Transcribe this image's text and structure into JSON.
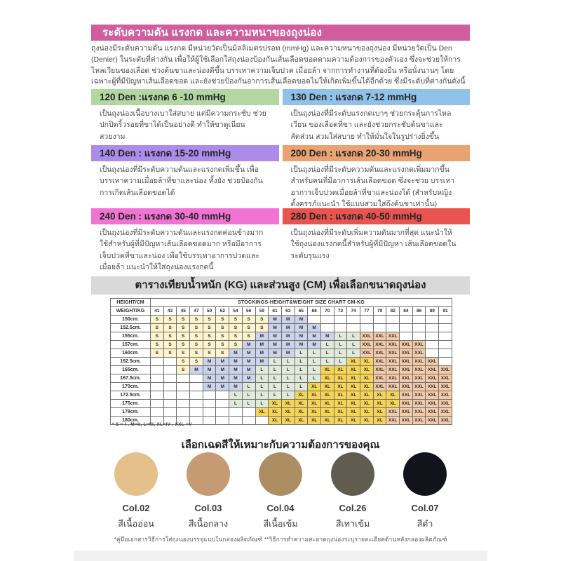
{
  "header": {
    "title": "ระดับความดัน แรงกด และความหนาของถุงน่อง",
    "bg_color": "#d15c9e"
  },
  "intro_text": "ถุงน่องมีระดับความดัน แรงกด มีหน่วยวัดเป็นมิลลิเมตรปรอท (mmHg) และความหนาของถุงน่อง มีหน่วยวัดเป็น Den (Denier) ในระดับที่ต่างกัน เพื่อให้ผู้ใช้เลือกใส่ถุงน่องป้องกันเส้นเลือดขอดตามความต้องการของตัวเอง ซึ่งจะช่วยให้การไหลเวียนของเลือด ช่วงต้นขาและน่องดีขึ้น บรรเทาความเจ็บปวด เมื่อยล้า จากการทำงานที่ต้องยืน หรือนั่งนานๆ โดยเฉพาะผู้ที่มีปัญหาเส้นเลือดขอด และยังช่วยป้องกันอาการเส้นเลือดขอดไม่ให้เกิดเพิ่มขึ้นได้อีกด้วย ซึ่งมีระดับที่ต่างกันดังนี้",
  "den_cards": [
    {
      "title": "120 Den :แรงกด 6 -10 mmHg",
      "color": "#b2d7a0",
      "body": "เป็นถุงน่องเนื้อบางเบาใส่สบาย แต่มีความกระชับ ช่วยปกปิดริ้วรอยที่ขาได้เป็นอย่างดี ทำให้ขาดูเนียนสวยงาม"
    },
    {
      "title": "130 Den : แรงกด 7-12 mmHg",
      "color": "#8fc1e9",
      "body": "เป็นถุงน่องที่มีระดับแรงกดเบาๆ ช่วยกระตุ้นการไหลเวียน ของเลือดที่ขา และยังช่วยกระชับต้นขาและสัดส่วน สวมใส่สบาย ทำให้มั่นใจในรูปร่างยิ่งขึ้น"
    },
    {
      "title": "140 Den : แรงกด 15-20 mmHg",
      "color": "#ab8cea",
      "body": "เป็นถุงน่องที่มีระดับความดันและแรงกดเพิ่มขึ้น เพื่อบรรเทาความเมื่อยล้าที่ขาและน่อง ทั้งยัง ช่วยป้องกันการเกิดเส้นเลือดขอดได้"
    },
    {
      "title": "200 Den : แรงกด 20-30 mmHg",
      "color": "#eaa273",
      "body": "เป็นถุงน่องที่มีระดับความดันและแรงกดเพิ่มมากขึ้น สำหรับคนที่มีอาการเส้นเลือดขอด ซึ่งจะช่วย บรรเทาอาการเจ็บปวดเมื่อยล้าที่ขาและน่องได้ (สำหรับหญิงตั้งครรภ์แนะนำ ใช้แบบสวมใส่ถึงต้นขาเท่านั้น)"
    },
    {
      "title": "240 Den : แรงกด 30-40 mmHg",
      "color": "#ef74d3",
      "body": "เป็นถุงน่องที่มีระดับความดันและแรงกดค่อนข้างมาก ใช้สำหรับผู้ที่มีปัญหาเส้นเลือดขอดมาก หรือมีอาการ เจ็บปวดที่ขาและน่อง เพื่อใช้บรรเทาอาการปวดและ เมื่อยล้า แนะนำให้ใส่ถุงน่องแรงกดนี้"
    },
    {
      "title": "280 Den : แรงกด 40-50 mmHg",
      "color": "#e85450",
      "body": "เป็นถุงน่องที่มีระดับเพิ่มความดันมากที่สุด แนะนำให้ใช้ถุงน่องแรงกดนี้สำหรับผู้ที่มีปัญหา เส้นเลือดขอดในระดับรุนแรง"
    }
  ],
  "size_section": {
    "title": "ตารางเทียบน้ำหนัก (KG) และส่วนสูง (CM) เพื่อเลือกขนาดถุงน่อง"
  },
  "size_chart": {
    "corner_height": "HEIGHT/CM",
    "corner_weight": "WEIGHT/KG",
    "span_title": "STOCKINGS-HEIGHT&WEIGHT SIZE CHART CM-KG",
    "weights": [
      41,
      43,
      45,
      47,
      50,
      52,
      54,
      56,
      59,
      61,
      63,
      65,
      68,
      70,
      72,
      74,
      77,
      79,
      82,
      84,
      86,
      89,
      91
    ],
    "rows": [
      {
        "height": "150cm.",
        "cells": [
          "S",
          "S",
          "S",
          "S",
          "S",
          "S",
          "S",
          "S",
          "S",
          "M",
          "M",
          "M",
          "",
          "",
          "",
          "",
          "",
          "",
          "",
          "",
          "",
          "",
          ""
        ]
      },
      {
        "height": "152.5cm.",
        "cells": [
          "S",
          "S",
          "S",
          "S",
          "S",
          "S",
          "S",
          "S",
          "S",
          "M",
          "M",
          "M",
          "M",
          "",
          "",
          "",
          "",
          "",
          "",
          "",
          "",
          "",
          ""
        ]
      },
      {
        "height": "155cm.",
        "cells": [
          "S",
          "S",
          "S",
          "S",
          "S",
          "S",
          "S",
          "S",
          "M",
          "M",
          "M",
          "M",
          "M",
          "M",
          "L",
          "L",
          "XXL",
          "XXL",
          "XXL",
          "",
          "",
          "",
          ""
        ]
      },
      {
        "height": "157cm.",
        "cells": [
          "S",
          "S",
          "S",
          "S",
          "S",
          "S",
          "S",
          "M",
          "M",
          "M",
          "M",
          "M",
          "M",
          "L",
          "L",
          "L",
          "XXL",
          "XXL",
          "XXL",
          "XXL",
          "XXL",
          "",
          ""
        ]
      },
      {
        "height": "160cm.",
        "cells": [
          "S",
          "S",
          "S",
          "S",
          "S",
          "S",
          "M",
          "M",
          "M",
          "M",
          "M",
          "L",
          "L",
          "L",
          "L",
          "L",
          "XXL",
          "XXL",
          "XXL",
          "XXL",
          "XXL",
          "",
          ""
        ]
      },
      {
        "height": "162.5cm.",
        "cells": [
          "",
          "",
          "S",
          "S",
          "M",
          "M",
          "M",
          "M",
          "M",
          "L",
          "L",
          "L",
          "L",
          "L",
          "L",
          "XL",
          "XL",
          "XXL",
          "XXL",
          "XXL",
          "XXL",
          "XXL",
          ""
        ]
      },
      {
        "height": "165cm.",
        "cells": [
          "",
          "",
          "S",
          "M",
          "M",
          "M",
          "M",
          "M",
          "L",
          "L",
          "L",
          "L",
          "L",
          "XL",
          "XL",
          "XL",
          "XL",
          "XXL",
          "XXL",
          "XXL",
          "XXL",
          "XXL",
          "XXL"
        ]
      },
      {
        "height": "167.5cm.",
        "cells": [
          "",
          "",
          "",
          "",
          "M",
          "M",
          "M",
          "M",
          "L",
          "L",
          "L",
          "L",
          "L",
          "XL",
          "XL",
          "XL",
          "XL",
          "XXL",
          "XXL",
          "XXL",
          "XXL",
          "XXL",
          "XXL"
        ]
      },
      {
        "height": "170cm.",
        "cells": [
          "",
          "",
          "",
          "",
          "M",
          "M",
          "M",
          "L",
          "L",
          "L",
          "L",
          "L",
          "XL",
          "XL",
          "XL",
          "XL",
          "XL",
          "XXL",
          "XXL",
          "XXL",
          "XXL",
          "XXL",
          "XXL"
        ]
      },
      {
        "height": "172.5cm.",
        "cells": [
          "",
          "",
          "",
          "",
          "",
          "",
          "L",
          "L",
          "L",
          "L",
          "L",
          "XL",
          "XL",
          "XL",
          "XL",
          "XL",
          "XL",
          "XL",
          "XL",
          "XXL",
          "XXL",
          "XXL",
          "XXL"
        ]
      },
      {
        "height": "175cm.",
        "cells": [
          "",
          "",
          "",
          "",
          "",
          "",
          "L",
          "L",
          "L",
          "XL",
          "XL",
          "XL",
          "XL",
          "XL",
          "XL",
          "XL",
          "XL",
          "XL",
          "XL",
          "XXL",
          "XXL",
          "XXL",
          "XXL"
        ]
      },
      {
        "height": "178cm.",
        "cells": [
          "",
          "",
          "",
          "",
          "",
          "",
          "",
          "",
          "XL",
          "XL",
          "XL",
          "XL",
          "XL",
          "XL",
          "XL",
          "XL",
          "XL",
          "XL",
          "XXL",
          "XXL",
          "XXL",
          "XXL",
          "XXL"
        ]
      },
      {
        "height": "180cm.",
        "cells": [
          "",
          "",
          "",
          "",
          "",
          "",
          "",
          "",
          "",
          "XL",
          "XL",
          "XL",
          "XL",
          "XL",
          "XL",
          "XL",
          "XL",
          "XL",
          "XXL",
          "XXL",
          "XXL",
          "XXL",
          "XXL"
        ]
      }
    ],
    "legend": "* S = I ,  M=II,  L=III,  XL=IV ,  XXL =V",
    "cell_colors": {
      "S": "#fdf3cd",
      "M": "#ccd4ec",
      "L": "#dfeada",
      "XL": "#f6d455",
      "XXL": "#f3cba9"
    }
  },
  "shades": {
    "title": "เลือกเฉดสีให้เหมาะกับความต้องการของคุณ",
    "items": [
      {
        "code": "Col.02",
        "name": "สีเนื้ออ่อน",
        "hex": "#e6c08b"
      },
      {
        "code": "Col.03",
        "name": "สีเนื้อกลาง",
        "hex": "#c69a73"
      },
      {
        "code": "Col.04",
        "name": "สีเนื้อเข้ม",
        "hex": "#ac8e62"
      },
      {
        "code": "Col.26",
        "name": "สีเทาเข้ม",
        "hex": "#625c50"
      },
      {
        "code": "Col.07",
        "name": "สีดำ",
        "hex": "#13131b"
      }
    ]
  },
  "footer_note": "*คู่มือเอกสารวิธีการใส่ถุงน่องบรรจุแนบในกล่องผลิตภัณฑ์  **วิธีการทำความสะอาดถุงน่องระบุรายละเอียดด้านหลังกล่องผลิตภัณฑ์"
}
